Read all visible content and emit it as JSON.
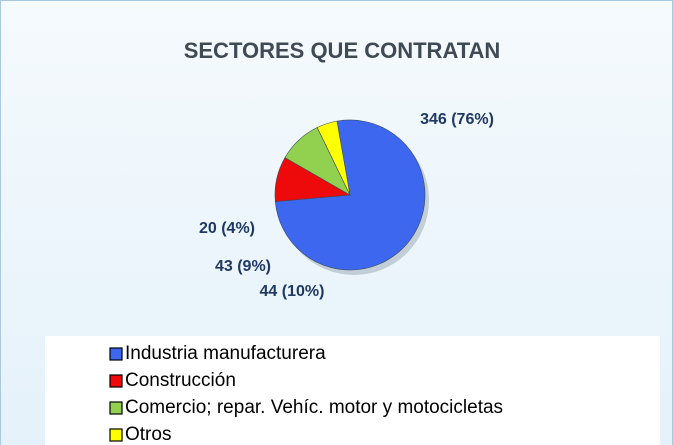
{
  "chart_data": {
    "type": "pie",
    "title": "SECTORES QUE CONTRATAN",
    "categories": [
      "Industria manufacturera",
      "Construcción",
      "Comercio; repar. Vehíc. motor y motocicletas",
      "Otros"
    ],
    "values": [
      346,
      44,
      43,
      20
    ],
    "value_labels": [
      "346 (76%)",
      "44 (10%)",
      "43 (9%)",
      "20 (4%)"
    ],
    "colors": [
      "#3d67ee",
      "#ee0a0a",
      "#92d050",
      "#ffff00"
    ],
    "legend": "bottom"
  }
}
